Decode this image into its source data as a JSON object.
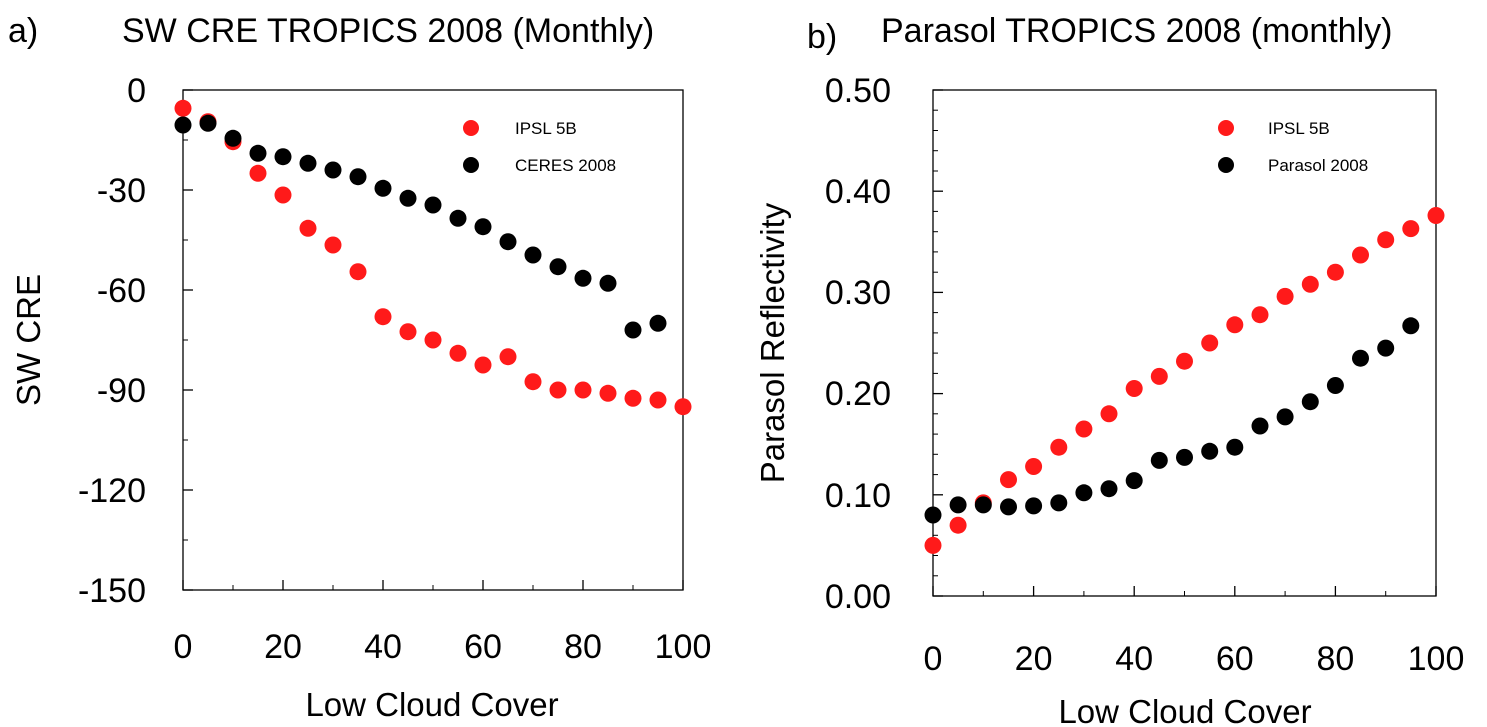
{
  "colors": {
    "model": "#ff1a1a",
    "obs": "#000000",
    "axis": "#000000"
  },
  "chart_data": [
    {
      "type": "scatter",
      "panel": "a)",
      "title": "SW CRE TROPICS 2008 (Monthly)",
      "xlabel": "Low Cloud Cover",
      "ylabel": "SW CRE",
      "xlim": [
        0,
        100
      ],
      "ylim": [
        -150,
        0
      ],
      "xticks": [
        0,
        20,
        40,
        60,
        80,
        100
      ],
      "yticks": [
        0,
        -30,
        -60,
        -90,
        -120,
        -150
      ],
      "ytick_labels": [
        "0",
        "-30",
        "-60",
        "-90",
        "-120",
        "-150"
      ],
      "grid": false,
      "legend_position": "top-right",
      "series": [
        {
          "name": "IPSL 5B",
          "color": "#ff1a1a",
          "x": [
            0,
            5,
            10,
            15,
            20,
            25,
            30,
            35,
            40,
            45,
            50,
            55,
            60,
            65,
            70,
            75,
            80,
            85,
            90,
            95,
            100
          ],
          "y": [
            -5.5,
            -9.5,
            -15.5,
            -25,
            -31.5,
            -41.5,
            -46.5,
            -54.5,
            -68,
            -72.5,
            -75,
            -79,
            -82.5,
            -80,
            -87.5,
            -90,
            -90,
            -91,
            -92.5,
            -93,
            -95
          ]
        },
        {
          "name": "CERES 2008",
          "color": "#000000",
          "x": [
            0,
            5,
            10,
            15,
            20,
            25,
            30,
            35,
            40,
            45,
            50,
            55,
            60,
            65,
            70,
            75,
            80,
            85,
            90,
            95
          ],
          "y": [
            -10.5,
            -10,
            -14.5,
            -19,
            -20,
            -22,
            -24,
            -26,
            -29.5,
            -32.5,
            -34.5,
            -38.5,
            -41,
            -45.5,
            -49.5,
            -53,
            -56.5,
            -58,
            -72,
            -70
          ]
        }
      ]
    },
    {
      "type": "scatter",
      "panel": "b)",
      "title": "Parasol TROPICS 2008 (monthly)",
      "xlabel": "Low Cloud Cover",
      "ylabel": "Parasol Reflectivity",
      "xlim": [
        0,
        100
      ],
      "ylim": [
        0,
        0.5
      ],
      "xticks": [
        0,
        20,
        40,
        60,
        80,
        100
      ],
      "yticks": [
        0,
        0.1,
        0.2,
        0.3,
        0.4,
        0.5
      ],
      "ytick_labels": [
        "0.00",
        "0.10",
        "0.20",
        "0.30",
        "0.40",
        "0.50"
      ],
      "grid": false,
      "legend_position": "top-right",
      "series": [
        {
          "name": "IPSL 5B",
          "color": "#ff1a1a",
          "x": [
            0,
            5,
            10,
            15,
            20,
            25,
            30,
            35,
            40,
            45,
            50,
            55,
            60,
            65,
            70,
            75,
            80,
            85,
            90,
            95,
            100
          ],
          "y": [
            0.05,
            0.07,
            0.092,
            0.115,
            0.128,
            0.147,
            0.165,
            0.18,
            0.205,
            0.217,
            0.232,
            0.25,
            0.268,
            0.278,
            0.296,
            0.308,
            0.32,
            0.337,
            0.352,
            0.363,
            0.376
          ]
        },
        {
          "name": "Parasol 2008",
          "color": "#000000",
          "x": [
            0,
            5,
            10,
            15,
            20,
            25,
            30,
            35,
            40,
            45,
            50,
            55,
            60,
            65,
            70,
            75,
            80,
            85,
            90,
            95
          ],
          "y": [
            0.08,
            0.09,
            0.09,
            0.088,
            0.089,
            0.092,
            0.102,
            0.106,
            0.114,
            0.134,
            0.137,
            0.143,
            0.147,
            0.168,
            0.177,
            0.192,
            0.208,
            0.235,
            0.245,
            0.267
          ]
        }
      ]
    }
  ]
}
